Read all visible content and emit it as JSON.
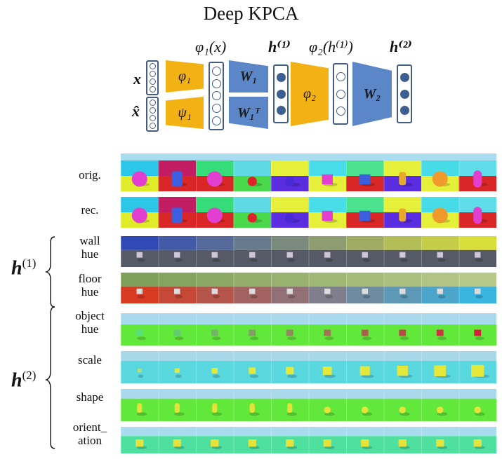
{
  "figure": {
    "title": "Deep KPCA",
    "diagram": {
      "labels": {
        "phi1x": "φ₁(x)",
        "h1": "h⁽¹⁾",
        "phi2h1": "φ₂(h⁽¹⁾)",
        "h2": "h⁽²⁾",
        "x": "x",
        "xhat": "x̂"
      },
      "blocks": {
        "phi1": "φ₁",
        "psi1": "ψ₁",
        "W1": "W₁",
        "W1T": "W₁ᵀ",
        "phi2": "φ₂",
        "W2": "W₂"
      }
    },
    "rows": {
      "orig": "orig.",
      "rec": "rec.",
      "wall": [
        "wall",
        "hue"
      ],
      "floor": [
        "floor",
        "hue"
      ],
      "object": [
        "object",
        "hue"
      ],
      "scale": "scale",
      "shape": "shape",
      "orientation": [
        "orient_",
        "ation"
      ]
    },
    "groups": {
      "h1": "h(1)",
      "h1_sup": "(1)",
      "h2": "h(2)",
      "h2_sup": "(2)",
      "h_letter": "h"
    },
    "colors": {
      "yellow_block": "#f3b214",
      "blue_block": "#5b86c7"
    }
  }
}
